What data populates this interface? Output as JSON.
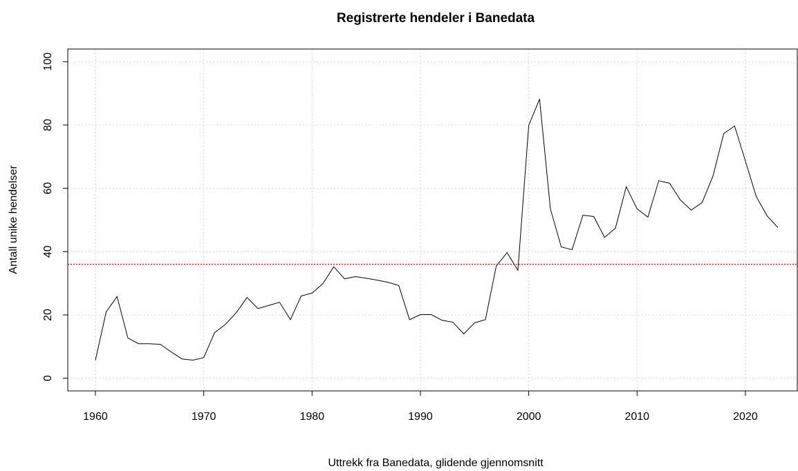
{
  "chart_data": {
    "type": "line",
    "title": "Registrerte hendeler i Banedata",
    "xlabel": "Uttrekk fra Banedata, glidende gjennomsnitt",
    "ylabel": "Antall unike hendelser",
    "x": [
      1960,
      1961,
      1962,
      1963,
      1964,
      1965,
      1966,
      1967,
      1968,
      1969,
      1970,
      1971,
      1972,
      1973,
      1974,
      1975,
      1976,
      1977,
      1978,
      1979,
      1980,
      1981,
      1982,
      1983,
      1984,
      1985,
      1986,
      1987,
      1988,
      1989,
      1990,
      1991,
      1992,
      1993,
      1994,
      1995,
      1996,
      1997,
      1998,
      1999,
      2000,
      2001,
      2002,
      2003,
      2004,
      2005,
      2006,
      2007,
      2008,
      2009,
      2010,
      2011,
      2012,
      2013,
      2014,
      2015,
      2016,
      2017,
      2018,
      2019,
      2020,
      2021,
      2022,
      2023
    ],
    "values": [
      5.7,
      21,
      25.8,
      12.7,
      10.9,
      10.9,
      10.7,
      8.3,
      6.1,
      5.7,
      6.5,
      14.4,
      17,
      20.7,
      25.5,
      22,
      23,
      24,
      18.5,
      26,
      26.9,
      29.9,
      35.2,
      31.4,
      32.1,
      31.6,
      31,
      30.3,
      29.3,
      18.5,
      20.1,
      20.1,
      18.3,
      17.7,
      14,
      17.5,
      18.5,
      35.4,
      39.7,
      34.1,
      79.9,
      88.2,
      53.5,
      41.5,
      40.6,
      51.5,
      51.1,
      44.5,
      47.4,
      60.5,
      53.5,
      50.9,
      62.4,
      61.6,
      56.3,
      53.1,
      55.5,
      63.8,
      77.3,
      79.7,
      68.6,
      57.4,
      51.3,
      47.6
    ],
    "color": "#000000",
    "hline": 36,
    "hline_color": "#e41a1c",
    "xlim": [
      1957.45,
      2024.79
    ],
    "xticks": [
      1960,
      1970,
      1980,
      1990,
      2000,
      2010,
      2020
    ],
    "ylim": [
      -4,
      104
    ],
    "yticks": [
      0,
      20,
      40,
      60,
      80,
      100
    ],
    "grid": true
  }
}
